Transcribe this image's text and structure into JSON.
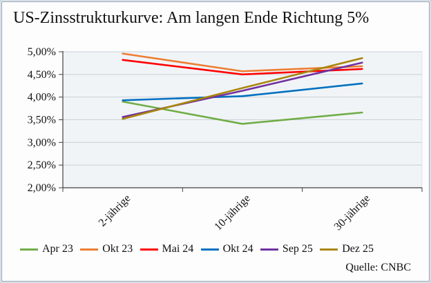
{
  "figure": {
    "title": "US-Zinsstrukturkurve: Am langen Ende Richtung 5%",
    "source": "Quelle: CNBC"
  },
  "colors": {
    "page_bg": "#fdfdfe",
    "frame_outer": "#c2cdd8",
    "frame_inner": "#8499ab",
    "plot_bg": "#f1f4f7",
    "gridline": "#c9cfd6",
    "axis": "#3f3f3f",
    "text": "#111111"
  },
  "chart_data": {
    "type": "line",
    "title": "US-Zinsstrukturkurve: Am langen Ende Richtung 5%",
    "source": "Quelle: CNBC",
    "categories": [
      "2-jährige",
      "10-jährige",
      "30-jährige"
    ],
    "series": [
      {
        "name": "Apr 23",
        "color": "#70AD47",
        "values": [
          3.9,
          3.41,
          3.66
        ]
      },
      {
        "name": "Okt 23",
        "color": "#ED7D31",
        "values": [
          4.96,
          4.57,
          4.68
        ]
      },
      {
        "name": "Mai 24",
        "color": "#FF0000",
        "values": [
          4.82,
          4.5,
          4.62
        ]
      },
      {
        "name": "Okt 24",
        "color": "#0070C0",
        "values": [
          3.93,
          4.02,
          4.3
        ]
      },
      {
        "name": "Sep 25",
        "color": "#7030A0",
        "values": [
          3.56,
          4.14,
          4.76
        ]
      },
      {
        "name": "Dez 25",
        "color": "#A8860D",
        "values": [
          3.52,
          4.2,
          4.86
        ]
      }
    ],
    "ylim": [
      2.0,
      5.0
    ],
    "ytick_step": 0.5,
    "ytick_labels": [
      "5,00%",
      "4,50%",
      "4,00%",
      "3,50%",
      "3,00%",
      "2,50%",
      "2,00%"
    ],
    "xlabel": "",
    "ylabel": "",
    "grid": true,
    "legend_position": "bottom"
  }
}
